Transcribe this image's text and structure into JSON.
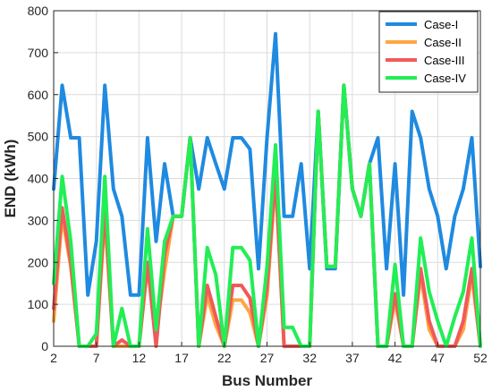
{
  "chart_data": {
    "type": "line",
    "xlabel": "Bus Number",
    "ylabel": "END (kWh)",
    "xlim": [
      2,
      52
    ],
    "ylim": [
      0,
      800
    ],
    "xticks": [
      2,
      7,
      12,
      17,
      22,
      27,
      32,
      37,
      42,
      47,
      52
    ],
    "yticks": [
      0,
      100,
      200,
      300,
      400,
      500,
      600,
      700,
      800
    ],
    "grid": true,
    "legend_position": "top-right",
    "x": [
      2,
      3,
      4,
      5,
      6,
      7,
      8,
      9,
      10,
      11,
      12,
      13,
      14,
      15,
      16,
      17,
      18,
      19,
      20,
      21,
      22,
      23,
      24,
      25,
      26,
      27,
      28,
      29,
      30,
      31,
      32,
      33,
      34,
      35,
      36,
      37,
      38,
      39,
      40,
      41,
      42,
      43,
      44,
      45,
      46,
      47,
      48,
      49,
      50,
      51,
      52
    ],
    "series": [
      {
        "name": "Case-I",
        "color": "#1f8ae0",
        "values": [
          375,
          622,
          497,
          497,
          122,
          250,
          622,
          375,
          310,
          122,
          122,
          497,
          250,
          435,
          310,
          310,
          497,
          375,
          497,
          435,
          375,
          497,
          497,
          470,
          185,
          497,
          745,
          310,
          310,
          435,
          185,
          560,
          185,
          185,
          622,
          375,
          310,
          435,
          497,
          185,
          435,
          122,
          560,
          497,
          375,
          310,
          185,
          310,
          375,
          497,
          190
        ]
      },
      {
        "name": "Case-II",
        "color": "#ffa640",
        "values": [
          60,
          310,
          190,
          0,
          0,
          0,
          310,
          0,
          0,
          0,
          0,
          190,
          30,
          180,
          310,
          310,
          497,
          0,
          120,
          50,
          0,
          110,
          110,
          80,
          0,
          120,
          400,
          0,
          0,
          0,
          0,
          560,
          190,
          190,
          622,
          375,
          310,
          435,
          0,
          0,
          110,
          0,
          0,
          170,
          40,
          0,
          0,
          0,
          40,
          170,
          0
        ]
      },
      {
        "name": "Case-III",
        "color": "#f05a5a",
        "values": [
          90,
          330,
          200,
          0,
          0,
          0,
          330,
          0,
          15,
          0,
          0,
          200,
          0,
          220,
          310,
          310,
          497,
          0,
          145,
          70,
          0,
          145,
          145,
          115,
          0,
          140,
          410,
          0,
          0,
          0,
          0,
          560,
          190,
          190,
          622,
          375,
          310,
          435,
          0,
          0,
          125,
          0,
          0,
          185,
          60,
          0,
          0,
          0,
          60,
          185,
          0
        ]
      },
      {
        "name": "Case-IV",
        "color": "#22ee55",
        "values": [
          150,
          405,
          250,
          0,
          0,
          30,
          405,
          0,
          90,
          0,
          0,
          280,
          40,
          250,
          310,
          310,
          497,
          0,
          235,
          170,
          0,
          235,
          235,
          205,
          0,
          190,
          480,
          45,
          45,
          0,
          0,
          560,
          190,
          190,
          622,
          375,
          310,
          435,
          0,
          0,
          195,
          0,
          0,
          258,
          130,
          60,
          0,
          70,
          130,
          258,
          0
        ]
      }
    ]
  }
}
